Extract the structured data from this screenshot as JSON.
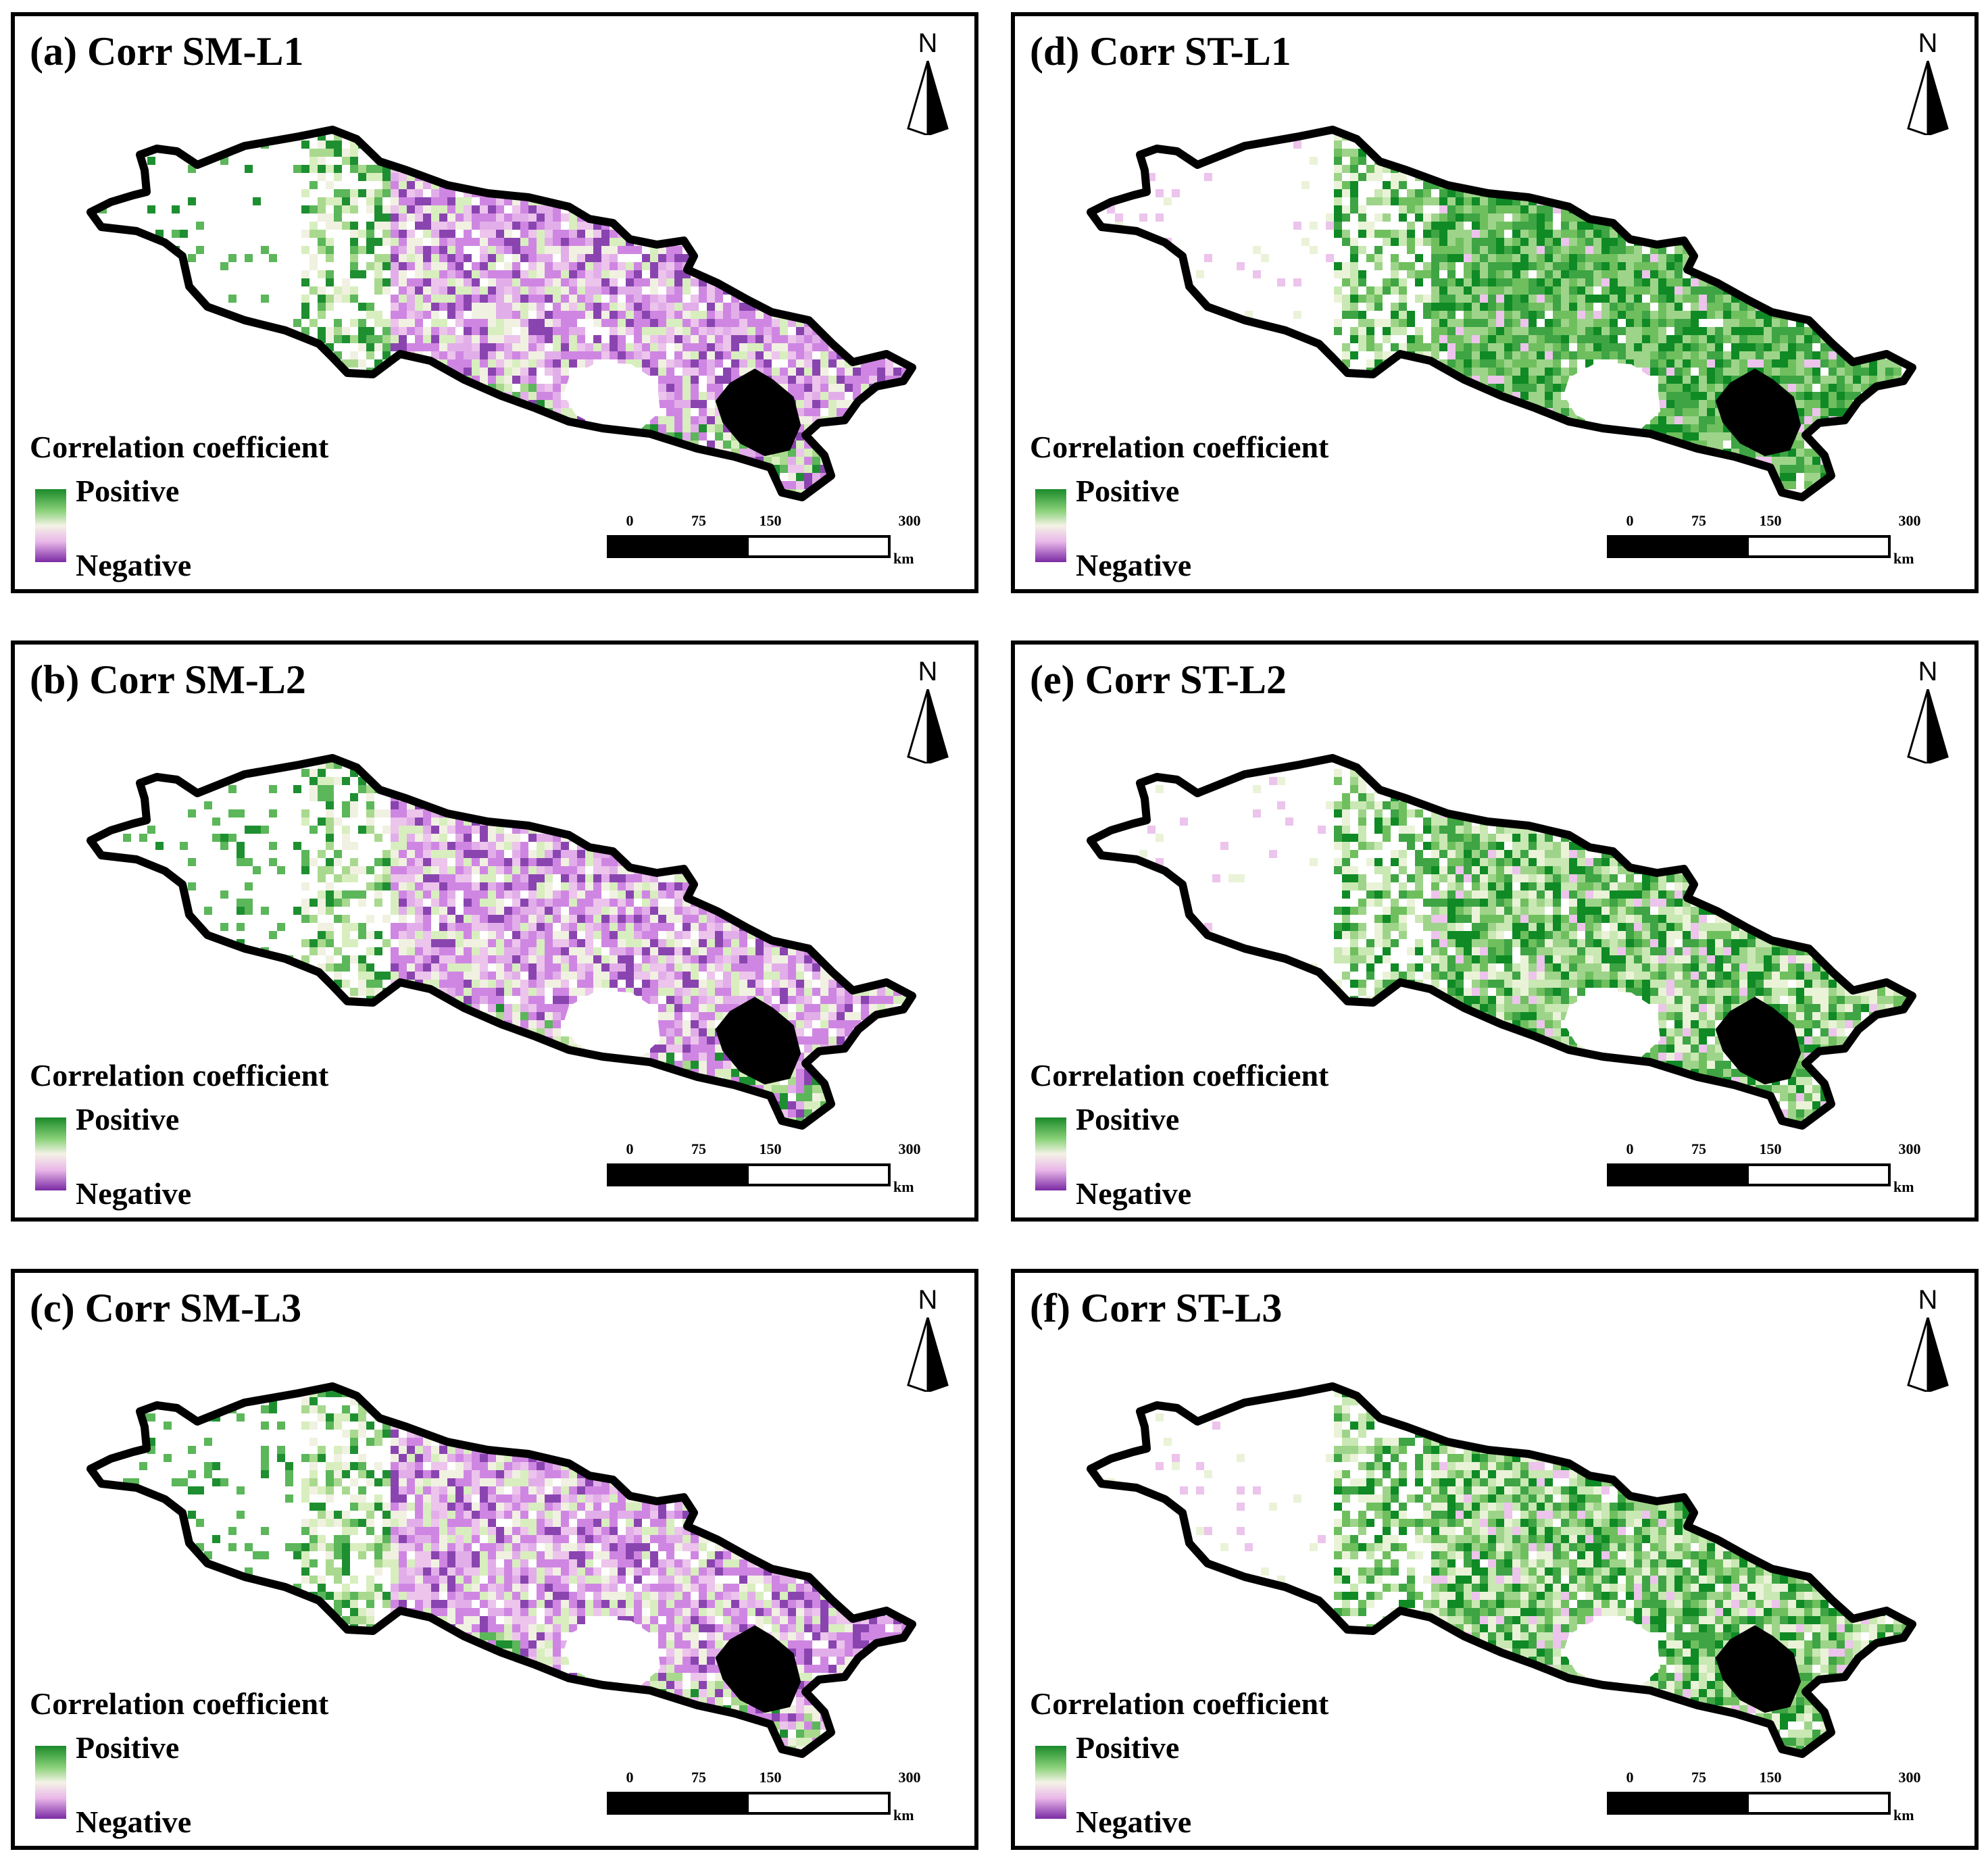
{
  "panels": [
    {
      "title": "(a) Corr SM-L1",
      "scheme": "sm",
      "variant": 1
    },
    {
      "title": "(d) Corr ST-L1",
      "scheme": "st",
      "variant": 1
    },
    {
      "title": "(b) Corr SM-L2",
      "scheme": "sm",
      "variant": 2
    },
    {
      "title": "(e) Corr ST-L2",
      "scheme": "st",
      "variant": 2
    },
    {
      "title": "(c) Corr SM-L3",
      "scheme": "sm",
      "variant": 3
    },
    {
      "title": "(f) Corr ST-L3",
      "scheme": "st",
      "variant": 3
    }
  ],
  "north_label": "N",
  "legend": {
    "title": "Correlation coefficient",
    "positive": "Positive",
    "negative": "Negative"
  },
  "scale": {
    "ticks": [
      "0",
      "75",
      "150",
      "300"
    ],
    "unit": "km"
  },
  "colors": {
    "positive_strong": "#0f8a25",
    "positive_mid": "#7cc86e",
    "positive_light": "#c8e8b4",
    "neutral": "#f1f1e2",
    "negative_light": "#ecc4ec",
    "negative_mid": "#cf86e2",
    "negative_strong": "#8a44b0",
    "outline": "#000000"
  }
}
